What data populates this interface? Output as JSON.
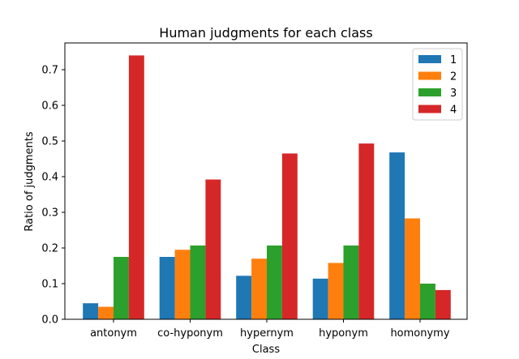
{
  "chart_data": {
    "type": "bar",
    "title": "Human judgments for each class",
    "xlabel": "Class",
    "ylabel": "Ratio of judgments",
    "categories": [
      "antonym",
      "co-hyponym",
      "hypernym",
      "hyponym",
      "homonymy"
    ],
    "ylim": [
      0,
      0.775
    ],
    "yticks": [
      "0.0",
      "0.1",
      "0.2",
      "0.3",
      "0.4",
      "0.5",
      "0.6",
      "0.7"
    ],
    "grid": false,
    "legend_position": "top-right",
    "series": [
      {
        "name": "1",
        "color": "#1f77b4",
        "values": [
          0.045,
          0.175,
          0.122,
          0.114,
          0.468
        ]
      },
      {
        "name": "2",
        "color": "#ff7f0e",
        "values": [
          0.035,
          0.195,
          0.17,
          0.158,
          0.283
        ]
      },
      {
        "name": "3",
        "color": "#2ca02c",
        "values": [
          0.175,
          0.207,
          0.207,
          0.207,
          0.1
        ]
      },
      {
        "name": "4",
        "color": "#d62728",
        "values": [
          0.74,
          0.392,
          0.465,
          0.493,
          0.082
        ]
      }
    ]
  }
}
